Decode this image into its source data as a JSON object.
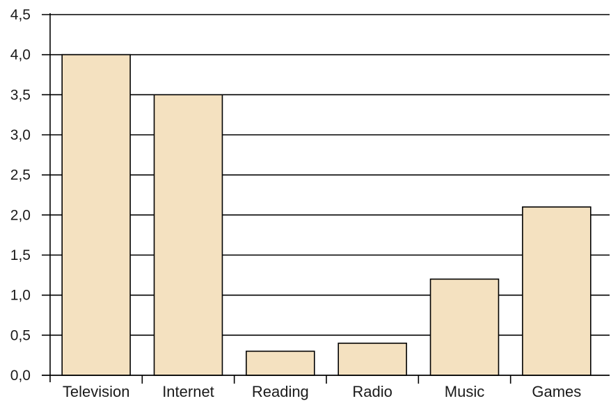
{
  "chart_data": {
    "type": "bar",
    "title": "",
    "xlabel": "",
    "ylabel": "",
    "categories": [
      "Television",
      "Internet",
      "Reading",
      "Radio",
      "Music",
      "Games"
    ],
    "values": [
      4.0,
      3.5,
      0.3,
      0.4,
      1.2,
      2.1
    ],
    "ylim": [
      0,
      4.5
    ],
    "yticks": [
      "0,0",
      "0,5",
      "1,0",
      "1,5",
      "2,0",
      "2,5",
      "3,0",
      "3,5",
      "4,0",
      "4,5"
    ],
    "grid": true,
    "legend": "none",
    "colors": {
      "bar_fill": "#f4e1c0",
      "bar_stroke": "#000000",
      "grid": "#000000"
    }
  }
}
